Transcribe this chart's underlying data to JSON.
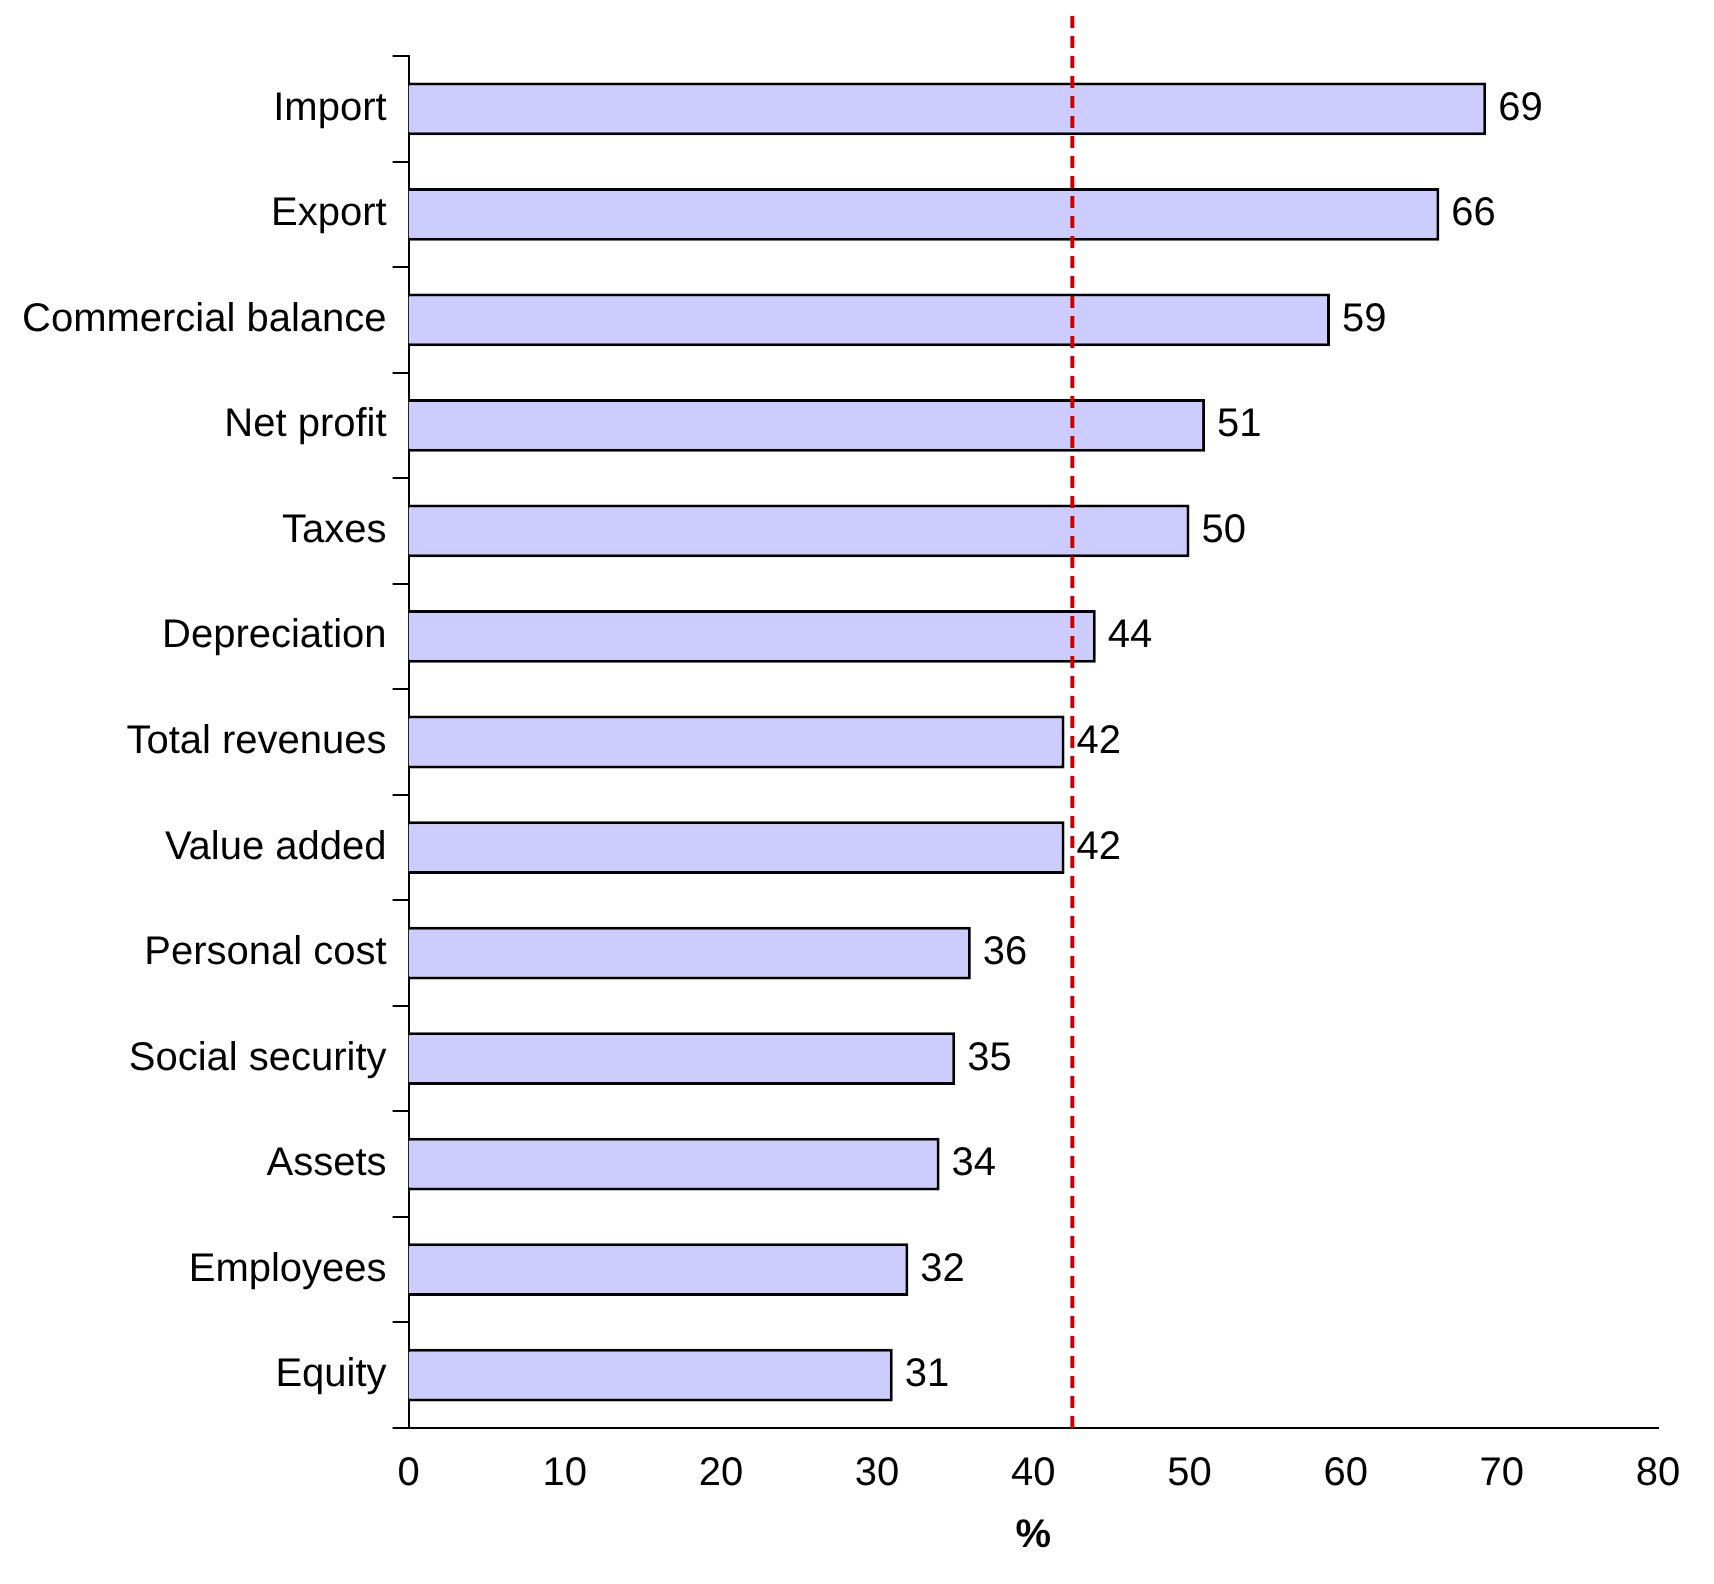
{
  "chart_data": {
    "type": "bar",
    "orientation": "horizontal",
    "xlabel": "%",
    "categories": [
      "Import",
      "Export",
      "Commercial balance",
      "Net profit",
      "Taxes",
      "Depreciation",
      "Total revenues",
      "Value added",
      "Personal cost",
      "Social security",
      "Assets",
      "Employees",
      "Equity"
    ],
    "values": [
      69,
      66,
      59,
      51,
      50,
      44,
      42,
      42,
      36,
      35,
      34,
      32,
      31
    ],
    "color": "#ccccff",
    "data_labels": true,
    "xlim": [
      0,
      80
    ],
    "xticks": [
      0,
      10,
      20,
      30,
      40,
      50,
      60,
      70,
      80
    ],
    "grid": false,
    "legend": false,
    "ref_lines": [
      {
        "axis": "x",
        "value": 42.5,
        "color": "#cc0000",
        "line_style": "dashed"
      }
    ]
  }
}
